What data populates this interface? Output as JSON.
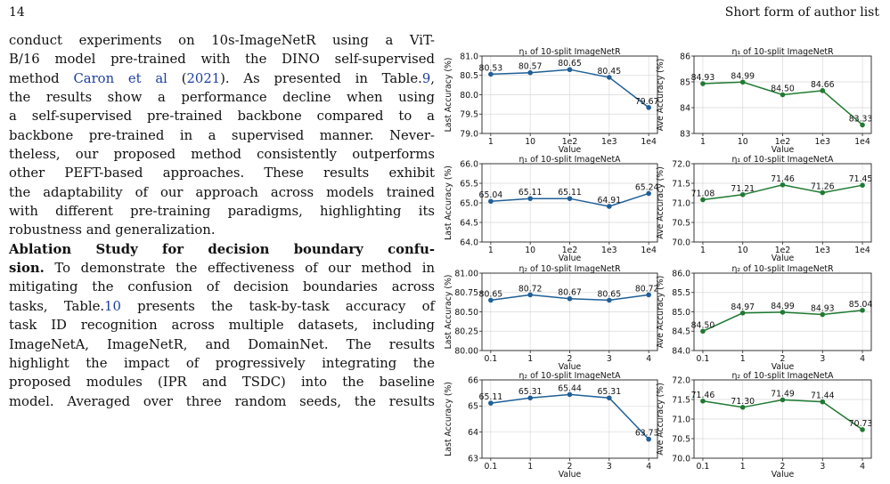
{
  "header": {
    "page_number": "14",
    "running_head": "Short form of author list"
  },
  "body": {
    "lines": [
      [
        {
          "t": "conduct experiments on 10s-ImageNetR using a ViT-"
        }
      ],
      [
        {
          "t": "B/16 model pre-trained with the DINO self-supervised"
        }
      ],
      [
        {
          "t": "method "
        },
        {
          "t": "Caron et al",
          "c": 1
        },
        {
          "t": " ("
        },
        {
          "t": "2021",
          "c": 1
        },
        {
          "t": "). As presented in Table."
        },
        {
          "t": "9",
          "c": 1
        },
        {
          "t": ","
        }
      ],
      [
        {
          "t": "the results show a performance decline when using"
        }
      ],
      [
        {
          "t": "a self-supervised pre-trained backbone compared to a"
        }
      ],
      [
        {
          "t": "backbone pre-trained in a supervised manner. Never-"
        }
      ],
      [
        {
          "t": "theless, our proposed method consistently outperforms"
        }
      ],
      [
        {
          "t": "other PEFT-based approaches. These results exhibit"
        }
      ],
      [
        {
          "t": "the adaptability of our approach across models trained"
        }
      ],
      [
        {
          "t": "with different pre-training paradigms, highlighting its"
        }
      ],
      [
        {
          "t": "robustness and generalization."
        }
      ],
      [
        {
          "t": "Ablation Study for decision boundary confu-",
          "b": 1
        }
      ],
      [
        {
          "t": "sion.",
          "b": 1
        },
        {
          "t": " To demonstrate the effectiveness of our method in"
        }
      ],
      [
        {
          "t": "mitigating the confusion of decision boundaries across"
        }
      ],
      [
        {
          "t": "tasks, Table."
        },
        {
          "t": "10",
          "c": 1
        },
        {
          "t": " presents the task-by-task accuracy of"
        }
      ],
      [
        {
          "t": "task ID recognition across multiple datasets, including"
        }
      ],
      [
        {
          "t": "ImageNetA, ImageNetR, and DomainNet. The results"
        }
      ],
      [
        {
          "t": "highlight the impact of progressively integrating the"
        }
      ],
      [
        {
          "t": "proposed modules (IPR and TSDC) into the baseline"
        }
      ],
      [
        {
          "t": "model. Averaged over three random seeds, the results"
        }
      ]
    ],
    "justify_flags": [
      1,
      1,
      1,
      1,
      1,
      1,
      1,
      1,
      1,
      1,
      0,
      1,
      1,
      1,
      1,
      1,
      1,
      1,
      1,
      1
    ]
  },
  "chart_data": [
    {
      "type": "line",
      "title": "η₁ of 10-split ImageNetR",
      "xlabel": "Value",
      "ylabel": "Last Accuracy (%)",
      "categories": [
        "1",
        "10",
        "1e2",
        "1e3",
        "1e4"
      ],
      "values": [
        80.53,
        80.57,
        80.65,
        80.45,
        79.67
      ],
      "labels": [
        "80.53",
        "80.57",
        "80.65",
        "80.45",
        "79.67"
      ],
      "ylim": [
        79.0,
        81.0
      ],
      "yticks": [
        "79.0",
        "79.5",
        "80.0",
        "80.5",
        "81.0"
      ],
      "color": "#1f5f97",
      "grid": true
    },
    {
      "type": "line",
      "title": "η₁ of 10-split ImageNetR",
      "xlabel": "Value",
      "ylabel": "Ave Accuracy (%)",
      "categories": [
        "1",
        "10",
        "1e2",
        "1e3",
        "1e4"
      ],
      "values": [
        84.93,
        84.99,
        84.5,
        84.66,
        83.33
      ],
      "labels": [
        "84.93",
        "84.99",
        "84.50",
        "84.66",
        "83.33"
      ],
      "ylim": [
        83,
        86
      ],
      "yticks": [
        "83",
        "84",
        "85",
        "86"
      ],
      "color": "#1f7a32",
      "grid": true
    },
    {
      "type": "line",
      "title": "η₁ of 10-split ImageNetA",
      "xlabel": "Value",
      "ylabel": "Last Accuracy (%)",
      "categories": [
        "1",
        "10",
        "1e2",
        "1e3",
        "1e4"
      ],
      "values": [
        65.04,
        65.11,
        65.11,
        64.91,
        65.24
      ],
      "labels": [
        "65.04",
        "65.11",
        "65.11",
        "64.91",
        "65.24"
      ],
      "ylim": [
        64.0,
        66.0
      ],
      "yticks": [
        "64.0",
        "64.5",
        "65.0",
        "65.5",
        "66.0"
      ],
      "color": "#1f5f97",
      "grid": true
    },
    {
      "type": "line",
      "title": "η₁ of 10-split ImageNetA",
      "xlabel": "Value",
      "ylabel": "Ave Accuracy (%)",
      "categories": [
        "1",
        "10",
        "1e2",
        "1e3",
        "1e4"
      ],
      "values": [
        71.08,
        71.21,
        71.46,
        71.26,
        71.45
      ],
      "labels": [
        "71.08",
        "71.21",
        "71.46",
        "71.26",
        "71.45"
      ],
      "ylim": [
        70.0,
        72.0
      ],
      "yticks": [
        "70.0",
        "70.5",
        "71.0",
        "71.5",
        "72.0"
      ],
      "color": "#1f7a32",
      "grid": true
    },
    {
      "type": "line",
      "title": "η₂ of 10-split ImageNetR",
      "xlabel": "Value",
      "ylabel": "Last Accuracy (%)",
      "categories": [
        "0.1",
        "1",
        "2",
        "3",
        "4"
      ],
      "values": [
        80.65,
        80.72,
        80.67,
        80.65,
        80.72
      ],
      "labels": [
        "80.65",
        "80.72",
        "80.67",
        "80.65",
        "80.72"
      ],
      "ylim": [
        80.0,
        81.0
      ],
      "yticks": [
        "80.00",
        "80.25",
        "80.50",
        "80.75",
        "81.00"
      ],
      "color": "#1f5f97",
      "grid": true
    },
    {
      "type": "line",
      "title": "η₂ of 10-split ImageNetR",
      "xlabel": "Value",
      "ylabel": "Ave Accuracy (%)",
      "categories": [
        "0.1",
        "1",
        "2",
        "3",
        "4"
      ],
      "values": [
        84.5,
        84.97,
        84.99,
        84.93,
        85.04
      ],
      "labels": [
        "84.50",
        "84.97",
        "84.99",
        "84.93",
        "85.04"
      ],
      "ylim": [
        84.0,
        86.0
      ],
      "yticks": [
        "84.0",
        "84.5",
        "85.0",
        "85.5",
        "86.0"
      ],
      "color": "#1f7a32",
      "grid": true
    },
    {
      "type": "line",
      "title": "η₂ of 10-split ImageNetA",
      "xlabel": "Value",
      "ylabel": "Last Accuracy (%)",
      "categories": [
        "0.1",
        "1",
        "2",
        "3",
        "4"
      ],
      "values": [
        65.11,
        65.31,
        65.44,
        65.31,
        63.73
      ],
      "labels": [
        "65.11",
        "65.31",
        "65.44",
        "65.31",
        "63.73"
      ],
      "ylim": [
        63,
        66
      ],
      "yticks": [
        "63",
        "64",
        "65",
        "66"
      ],
      "color": "#1f5f97",
      "grid": true
    },
    {
      "type": "line",
      "title": "η₂ of 10-split ImageNetA",
      "xlabel": "Value",
      "ylabel": "Ave Accuracy (%)",
      "categories": [
        "0.1",
        "1",
        "2",
        "3",
        "4"
      ],
      "values": [
        71.46,
        71.3,
        71.49,
        71.44,
        70.73
      ],
      "labels": [
        "71.46",
        "71.30",
        "71.49",
        "71.44",
        "70.73"
      ],
      "ylim": [
        70.0,
        72.0
      ],
      "yticks": [
        "70.0",
        "70.5",
        "71.0",
        "71.5",
        "72.0"
      ],
      "color": "#1f7a32",
      "grid": true
    }
  ]
}
